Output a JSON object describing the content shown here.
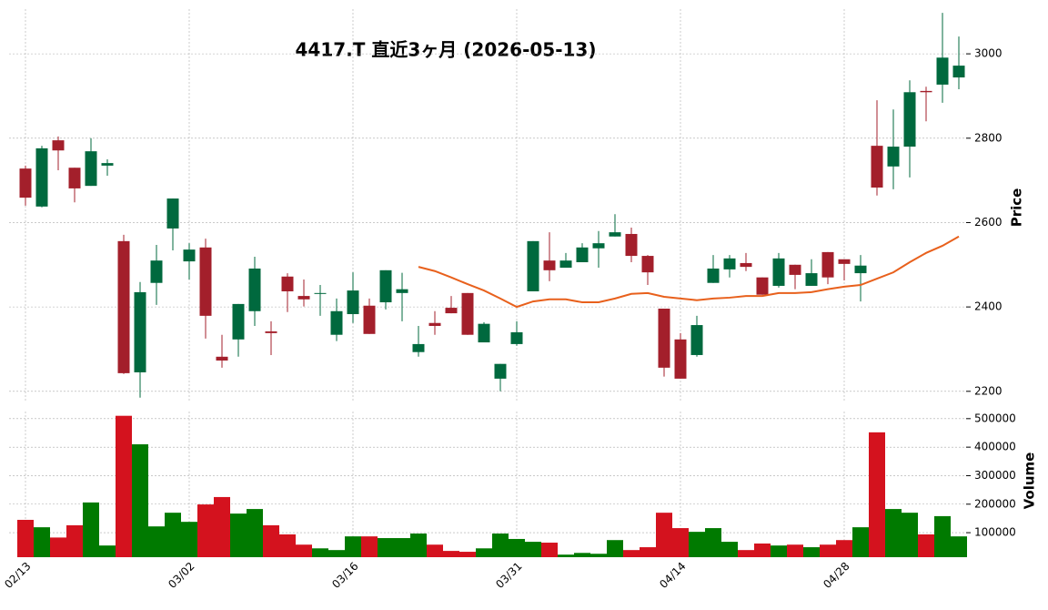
{
  "chart_data": {
    "type": "candlestick",
    "title": "4417.T  直近3ヶ月  (2026-05-13)",
    "categories": [
      "02/13",
      null,
      null,
      null,
      null,
      null,
      null,
      null,
      null,
      null,
      "03/02",
      null,
      null,
      null,
      null,
      null,
      null,
      null,
      null,
      null,
      "03/16",
      null,
      null,
      null,
      null,
      null,
      null,
      null,
      null,
      null,
      "03/31",
      null,
      null,
      null,
      null,
      null,
      null,
      null,
      null,
      null,
      "04/14",
      null,
      null,
      null,
      null,
      null,
      null,
      null,
      null,
      null,
      "04/28",
      null,
      null,
      null,
      null,
      null,
      null,
      null
    ],
    "open": [
      2728,
      2638,
      2795,
      2730,
      2687,
      2735,
      2556,
      2245,
      2457,
      2586,
      2508,
      2541,
      2282,
      2323,
      2390,
      2342,
      2472,
      2426,
      2431,
      2334,
      2383,
      2403,
      2411,
      2433,
      2293,
      2362,
      2398,
      2433,
      2316,
      2230,
      2312,
      2437,
      2510,
      2493,
      2506,
      2539,
      2567,
      2573,
      2521,
      2396,
      2323,
      2286,
      2457,
      2489,
      2504,
      2470,
      2450,
      2500,
      2450,
      2530,
      2513,
      2480,
      2782,
      2733,
      2780,
      2912,
      2927,
      2944
    ],
    "high": [
      2735,
      2782,
      2804,
      2730,
      2800,
      2750,
      2571,
      2459,
      2547,
      2657,
      2551,
      2562,
      2334,
      2407,
      2519,
      2366,
      2480,
      2465,
      2452,
      2420,
      2482,
      2420,
      2487,
      2481,
      2355,
      2390,
      2426,
      2433,
      2364,
      2265,
      2366,
      2556,
      2577,
      2528,
      2551,
      2580,
      2620,
      2588,
      2523,
      2396,
      2338,
      2379,
      2523,
      2523,
      2528,
      2470,
      2528,
      2500,
      2513,
      2530,
      2513,
      2523,
      2890,
      2868,
      2937,
      2922,
      3097,
      3041
    ],
    "low": [
      2640,
      2636,
      2724,
      2648,
      2687,
      2711,
      2241,
      2185,
      2405,
      2534,
      2465,
      2325,
      2256,
      2282,
      2355,
      2286,
      2388,
      2401,
      2379,
      2319,
      2362,
      2336,
      2394,
      2366,
      2282,
      2334,
      2385,
      2334,
      2316,
      2200,
      2308,
      2437,
      2461,
      2493,
      2506,
      2493,
      2567,
      2506,
      2452,
      2235,
      2230,
      2282,
      2457,
      2470,
      2485,
      2429,
      2446,
      2442,
      2450,
      2454,
      2463,
      2413,
      2664,
      2679,
      2707,
      2840,
      2884,
      2916
    ],
    "close": [
      2659,
      2776,
      2771,
      2681,
      2769,
      2741,
      2243,
      2435,
      2510,
      2657,
      2536,
      2379,
      2273,
      2407,
      2491,
      2338,
      2437,
      2418,
      2433,
      2390,
      2439,
      2336,
      2487,
      2442,
      2312,
      2355,
      2385,
      2334,
      2360,
      2265,
      2340,
      2556,
      2487,
      2510,
      2541,
      2551,
      2577,
      2521,
      2482,
      2256,
      2230,
      2357,
      2491,
      2515,
      2495,
      2429,
      2515,
      2476,
      2480,
      2470,
      2502,
      2498,
      2683,
      2780,
      2909,
      2909,
      2991,
      2972
    ],
    "up_color": "#00693e",
    "down_color": "#a31f2b",
    "ma": {
      "color": "#e8601c",
      "values": [
        null,
        null,
        null,
        null,
        null,
        null,
        null,
        null,
        null,
        null,
        null,
        null,
        null,
        null,
        null,
        null,
        null,
        null,
        null,
        null,
        null,
        null,
        null,
        null,
        2495,
        2485,
        2470,
        2454,
        2439,
        2420,
        2400,
        2413,
        2418,
        2418,
        2411,
        2411,
        2420,
        2431,
        2433,
        2424,
        2420,
        2416,
        2420,
        2422,
        2426,
        2426,
        2433,
        2433,
        2435,
        2442,
        2448,
        2452,
        2467,
        2482,
        2506,
        2528,
        2545,
        2567
      ]
    },
    "ylabel": "Price",
    "ylim": [
      2178,
      3106
    ],
    "yticks": [
      2200,
      2400,
      2600,
      2800,
      3000
    ],
    "grid": true,
    "volume": {
      "ylabel": "Volume",
      "values": [
        145000,
        119000,
        83000,
        126000,
        206000,
        55000,
        510000,
        410000,
        122000,
        170000,
        138000,
        199000,
        225000,
        167000,
        183000,
        126000,
        94000,
        58000,
        45000,
        39000,
        87000,
        87000,
        81000,
        81000,
        97000,
        58000,
        36000,
        33000,
        45000,
        97000,
        78000,
        68000,
        65000,
        23000,
        29000,
        26000,
        74000,
        39000,
        49000,
        170000,
        116000,
        103000,
        116000,
        68000,
        39000,
        62000,
        55000,
        58000,
        49000,
        58000,
        74000,
        119000,
        452000,
        183000,
        170000,
        94000,
        158000,
        87000
      ],
      "up_color": "#007a00",
      "down_color": "#d4121e",
      "ylim": [
        14000,
        525000
      ],
      "yticks": [
        100000,
        200000,
        300000,
        400000,
        500000
      ]
    }
  }
}
